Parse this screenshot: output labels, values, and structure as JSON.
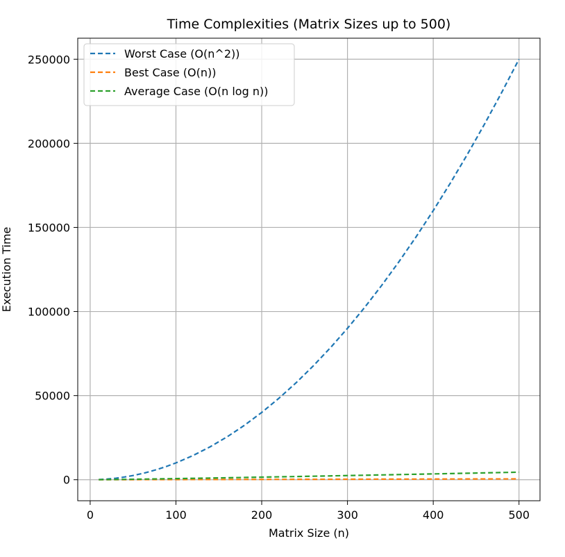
{
  "chart_data": {
    "type": "line",
    "title": "Time Complexities (Matrix Sizes up to 500)",
    "xlabel": "Matrix Size (n)",
    "ylabel": "Execution Time",
    "xlim": [
      -14.5,
      524.5
    ],
    "ylim": [
      -12500,
      262500
    ],
    "x_ticks": [
      0,
      100,
      200,
      300,
      400,
      500
    ],
    "y_ticks": [
      0,
      50000,
      100000,
      150000,
      200000,
      250000
    ],
    "grid": true,
    "legend_position": "upper-left",
    "line_style": "dashed",
    "x": [
      10,
      20,
      30,
      40,
      50,
      60,
      70,
      80,
      90,
      100,
      120,
      140,
      160,
      180,
      200,
      220,
      240,
      260,
      280,
      300,
      320,
      340,
      360,
      380,
      400,
      420,
      440,
      460,
      480,
      500
    ],
    "series": [
      {
        "name": "Worst Case (O(n^2))",
        "color": "#1f77b4",
        "values": [
          100,
          400,
          900,
          1600,
          2500,
          3600,
          4900,
          6400,
          8100,
          10000,
          14400,
          19600,
          25600,
          32400,
          40000,
          48400,
          57600,
          67600,
          78400,
          90000,
          102400,
          115600,
          129600,
          144400,
          160000,
          176400,
          193600,
          211600,
          230400,
          250000
        ]
      },
      {
        "name": "Best Case (O(n))",
        "color": "#ff7f0e",
        "values": [
          10,
          20,
          30,
          40,
          50,
          60,
          70,
          80,
          90,
          100,
          120,
          140,
          160,
          180,
          200,
          220,
          240,
          260,
          280,
          300,
          320,
          340,
          360,
          380,
          400,
          420,
          440,
          460,
          480,
          500
        ]
      },
      {
        "name": "Average Case (O(n log n))",
        "color": "#2ca02c",
        "values": [
          33,
          86,
          147,
          213,
          282,
          354,
          429,
          506,
          584,
          664,
          829,
          998,
          1172,
          1349,
          1529,
          1711,
          1897,
          2084,
          2276,
          2469,
          2663,
          2859,
          3057,
          3256,
          3458,
          3661,
          3865,
          4070,
          4277,
          4483
        ]
      }
    ]
  }
}
